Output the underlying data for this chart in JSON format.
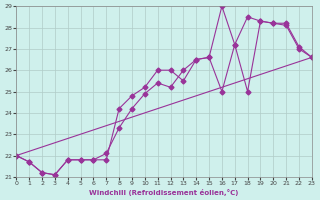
{
  "xlabel": "Windchill (Refroidissement éolien,°C)",
  "line_color": "#993399",
  "marker": "D",
  "markersize": 2.5,
  "linewidth": 0.8,
  "background_color": "#cff0ec",
  "grid_color": "#b0ccc8",
  "xlim": [
    0,
    23
  ],
  "ylim": [
    21,
    29
  ],
  "yticks": [
    21,
    22,
    23,
    24,
    25,
    26,
    27,
    28,
    29
  ],
  "xticks": [
    0,
    1,
    2,
    3,
    4,
    5,
    6,
    7,
    8,
    9,
    10,
    11,
    12,
    13,
    14,
    15,
    16,
    17,
    18,
    19,
    20,
    21,
    22,
    23
  ],
  "series1_x": [
    0,
    1,
    2,
    3,
    4,
    5,
    6,
    7,
    8,
    9,
    10,
    11,
    12,
    13,
    14,
    15,
    16,
    17,
    18,
    19,
    20,
    21,
    22,
    23
  ],
  "series1_y": [
    22.0,
    21.7,
    21.2,
    21.1,
    21.8,
    21.8,
    21.8,
    22.1,
    23.3,
    24.2,
    24.9,
    25.4,
    25.2,
    26.0,
    26.5,
    26.6,
    25.0,
    27.2,
    25.0,
    28.3,
    28.2,
    28.1,
    27.0,
    26.6
  ],
  "series2_x": [
    0,
    1,
    2,
    3,
    4,
    5,
    6,
    7,
    8,
    9,
    10,
    11,
    12,
    13,
    14,
    15,
    16,
    17,
    18,
    19,
    20,
    21,
    22,
    23
  ],
  "series2_y": [
    22.0,
    21.7,
    21.2,
    21.1,
    21.8,
    21.8,
    21.8,
    21.8,
    24.2,
    24.8,
    25.2,
    26.0,
    26.0,
    25.5,
    26.5,
    26.6,
    29.0,
    27.2,
    28.5,
    28.3,
    28.2,
    28.2,
    27.1,
    26.6
  ],
  "series3_x": [
    0,
    23
  ],
  "series3_y": [
    22.0,
    26.6
  ]
}
